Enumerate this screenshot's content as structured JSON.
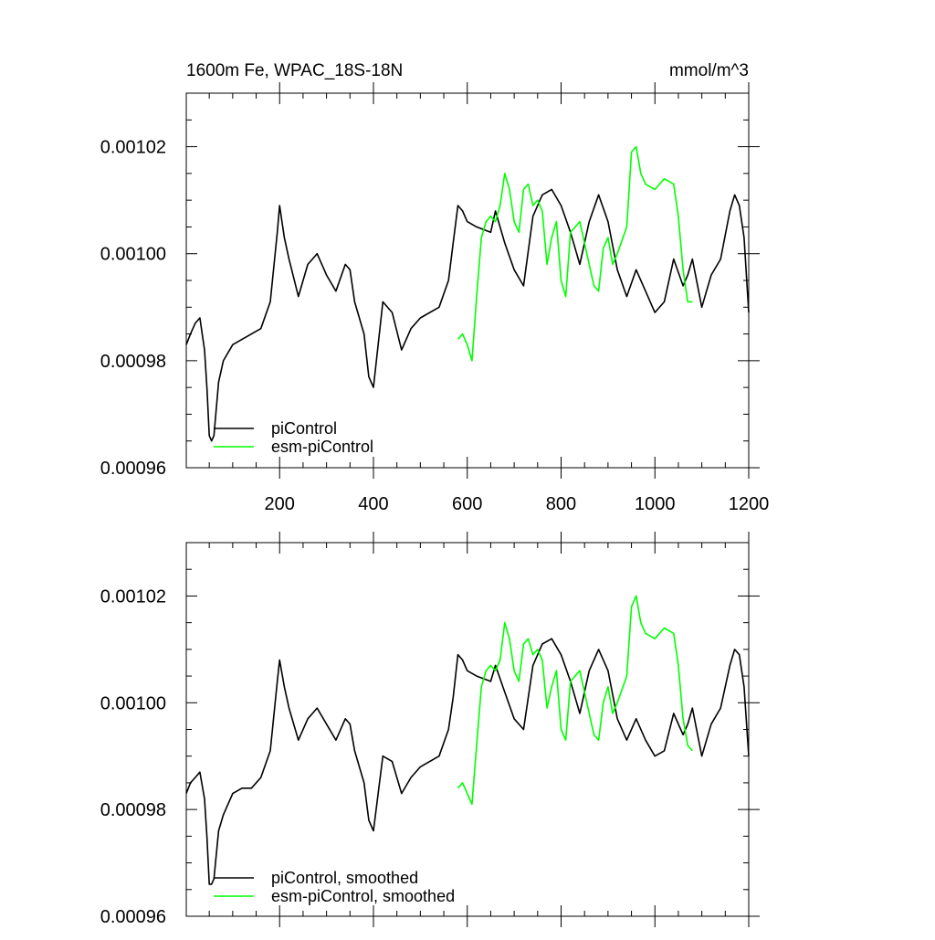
{
  "title_left": "1600m Fe, WPAC_18S-18N",
  "title_right": "mmol/m^3",
  "colors": {
    "piControl": "#000000",
    "esm_piControl": "#00ff00",
    "axes": "#000000"
  },
  "chart_data": [
    {
      "type": "line",
      "xlim": [
        1,
        1200
      ],
      "ylim": [
        0.00096,
        0.00103
      ],
      "xticks": [
        200,
        400,
        600,
        800,
        1000,
        1200
      ],
      "xtick_labels": [
        "200",
        "400",
        "600",
        "800",
        "1000",
        "1200"
      ],
      "yticks": [
        0.00096,
        0.00098,
        0.001,
        0.00102
      ],
      "ytick_labels": [
        "0.00096",
        "0.00098",
        "0.00100",
        "0.00102"
      ],
      "legend_placement": "bottom-left",
      "series": [
        {
          "name": "piControl",
          "x": [
            1,
            10,
            20,
            30,
            40,
            45,
            50,
            55,
            60,
            70,
            80,
            100,
            120,
            140,
            160,
            180,
            195,
            200,
            210,
            220,
            240,
            260,
            270,
            280,
            300,
            320,
            340,
            350,
            360,
            380,
            390,
            400,
            420,
            440,
            460,
            480,
            500,
            540,
            560,
            570,
            580,
            590,
            600,
            620,
            650,
            660,
            680,
            700,
            720,
            740,
            760,
            780,
            800,
            820,
            840,
            860,
            880,
            900,
            920,
            940,
            960,
            980,
            1000,
            1020,
            1040,
            1060,
            1070,
            1080,
            1100,
            1120,
            1140,
            1160,
            1170,
            1180,
            1190,
            1200
          ],
          "values": [
            0.000983,
            0.000985,
            0.000987,
            0.000988,
            0.000982,
            0.000975,
            0.000966,
            0.000965,
            0.000966,
            0.000976,
            0.00098,
            0.000983,
            0.000984,
            0.000985,
            0.000986,
            0.000991,
            0.001004,
            0.001009,
            0.001003,
            0.000999,
            0.000992,
            0.000998,
            0.000999,
            0.001,
            0.000996,
            0.000993,
            0.000998,
            0.000997,
            0.000991,
            0.000985,
            0.000977,
            0.000975,
            0.000991,
            0.000989,
            0.000982,
            0.000986,
            0.000988,
            0.00099,
            0.000995,
            0.001002,
            0.001009,
            0.001008,
            0.001006,
            0.001005,
            0.001004,
            0.001008,
            0.001002,
            0.000997,
            0.000994,
            0.001007,
            0.001011,
            0.001012,
            0.001009,
            0.001004,
            0.000998,
            0.001006,
            0.001011,
            0.001006,
            0.000997,
            0.000992,
            0.000997,
            0.000993,
            0.000989,
            0.000991,
            0.000999,
            0.000994,
            0.000996,
            0.000999,
            0.00099,
            0.000996,
            0.000999,
            0.001008,
            0.001011,
            0.001009,
            0.001003,
            0.000989
          ]
        },
        {
          "name": "esm-piControl",
          "x": [
            580,
            590,
            600,
            610,
            620,
            630,
            640,
            650,
            660,
            670,
            680,
            690,
            700,
            710,
            720,
            730,
            740,
            750,
            760,
            770,
            780,
            790,
            800,
            810,
            820,
            840,
            860,
            870,
            880,
            890,
            900,
            910,
            920,
            940,
            950,
            960,
            970,
            980,
            1000,
            1020,
            1040,
            1050,
            1060,
            1070,
            1080
          ],
          "values": [
            0.000984,
            0.000985,
            0.000983,
            0.00098,
            0.000992,
            0.001003,
            0.001006,
            0.001007,
            0.001006,
            0.001009,
            0.001015,
            0.001012,
            0.001006,
            0.001004,
            0.001012,
            0.001013,
            0.001009,
            0.00101,
            0.001008,
            0.000998,
            0.001003,
            0.001006,
            0.000995,
            0.000992,
            0.001004,
            0.001006,
            0.000998,
            0.000994,
            0.000993,
            0.001001,
            0.001003,
            0.000998,
            0.001,
            0.001005,
            0.001019,
            0.00102,
            0.001015,
            0.001013,
            0.001012,
            0.001014,
            0.001013,
            0.001007,
            0.000997,
            0.000991,
            0.000991
          ]
        }
      ]
    },
    {
      "type": "line",
      "xlim": [
        1,
        1200
      ],
      "ylim": [
        0.00096,
        0.00103
      ],
      "xticks": [
        200,
        400,
        600,
        800,
        1000,
        1200
      ],
      "yticks": [
        0.00096,
        0.00098,
        0.001,
        0.00102
      ],
      "ytick_labels": [
        "0.00096",
        "0.00098",
        "0.00100",
        "0.00102"
      ],
      "legend_placement": "bottom-left",
      "series": [
        {
          "name": "piControl, smoothed",
          "x": [
            1,
            10,
            20,
            30,
            40,
            45,
            50,
            55,
            60,
            70,
            80,
            100,
            120,
            140,
            160,
            180,
            195,
            200,
            210,
            220,
            240,
            260,
            270,
            280,
            300,
            320,
            340,
            350,
            360,
            380,
            390,
            400,
            420,
            440,
            460,
            480,
            500,
            540,
            560,
            570,
            580,
            590,
            600,
            620,
            650,
            660,
            680,
            700,
            720,
            740,
            760,
            780,
            800,
            820,
            840,
            860,
            880,
            900,
            920,
            940,
            960,
            980,
            1000,
            1020,
            1040,
            1060,
            1070,
            1080,
            1100,
            1120,
            1140,
            1160,
            1170,
            1180,
            1190,
            1200
          ],
          "values": [
            0.000983,
            0.000985,
            0.000986,
            0.000987,
            0.000982,
            0.000975,
            0.000966,
            0.000966,
            0.000967,
            0.000976,
            0.000979,
            0.000983,
            0.000984,
            0.000984,
            0.000986,
            0.000991,
            0.001004,
            0.001008,
            0.001003,
            0.000999,
            0.000993,
            0.000997,
            0.000998,
            0.000999,
            0.000996,
            0.000993,
            0.000997,
            0.000996,
            0.000991,
            0.000985,
            0.000978,
            0.000976,
            0.00099,
            0.000989,
            0.000983,
            0.000986,
            0.000988,
            0.00099,
            0.000995,
            0.001001,
            0.001009,
            0.001008,
            0.001006,
            0.001005,
            0.001004,
            0.001007,
            0.001002,
            0.000997,
            0.000995,
            0.001007,
            0.001011,
            0.001012,
            0.001009,
            0.001004,
            0.000998,
            0.001006,
            0.00101,
            0.001006,
            0.000997,
            0.000993,
            0.000997,
            0.000993,
            0.00099,
            0.000991,
            0.000998,
            0.000994,
            0.000996,
            0.000999,
            0.00099,
            0.000996,
            0.000999,
            0.001007,
            0.00101,
            0.001009,
            0.001003,
            0.00099
          ]
        },
        {
          "name": "esm-piControl, smoothed",
          "x": [
            580,
            590,
            600,
            610,
            620,
            630,
            640,
            650,
            660,
            670,
            680,
            690,
            700,
            710,
            720,
            730,
            740,
            750,
            760,
            770,
            780,
            790,
            800,
            810,
            820,
            840,
            860,
            870,
            880,
            890,
            900,
            910,
            920,
            940,
            950,
            960,
            970,
            980,
            1000,
            1020,
            1040,
            1050,
            1060,
            1070,
            1080
          ],
          "values": [
            0.000984,
            0.000985,
            0.000983,
            0.000981,
            0.000992,
            0.001003,
            0.001006,
            0.001007,
            0.001006,
            0.001008,
            0.001015,
            0.001012,
            0.001006,
            0.001004,
            0.001011,
            0.001012,
            0.001009,
            0.00101,
            0.001008,
            0.000999,
            0.001003,
            0.001006,
            0.000995,
            0.000993,
            0.001004,
            0.001006,
            0.000998,
            0.000994,
            0.000993,
            0.001,
            0.001003,
            0.000998,
            0.001,
            0.001005,
            0.001018,
            0.00102,
            0.001015,
            0.001013,
            0.001012,
            0.001014,
            0.001013,
            0.001007,
            0.000997,
            0.000992,
            0.000991
          ]
        }
      ]
    }
  ]
}
